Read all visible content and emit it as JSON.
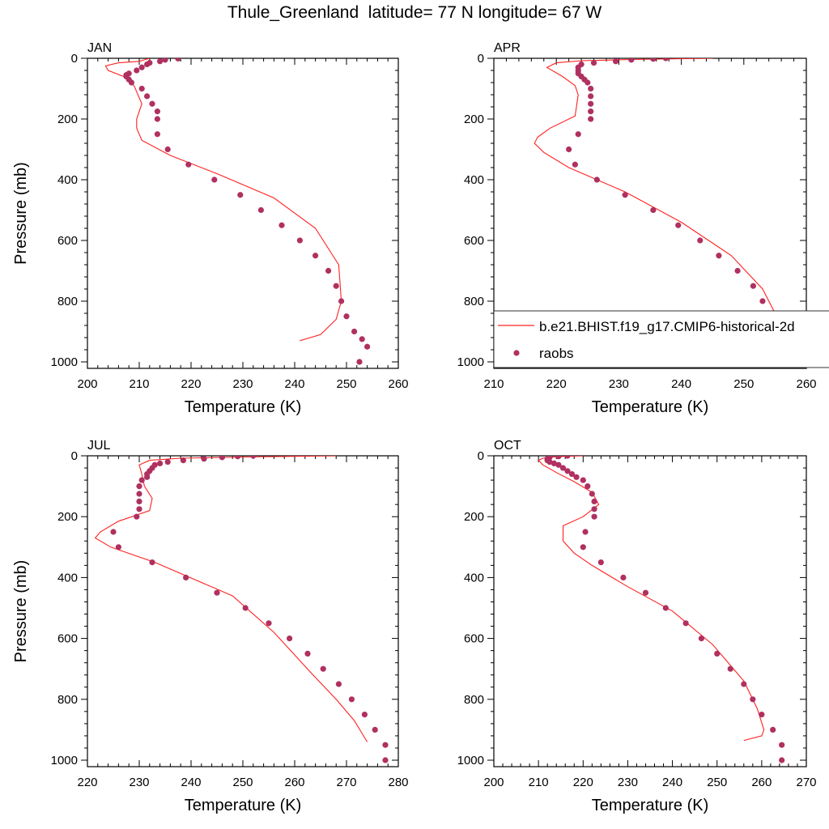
{
  "title": "Thule_Greenland  latitude= 77 N longitude= 67 W",
  "colors": {
    "model": "#ff2020",
    "obs": "#b03060"
  },
  "legend": {
    "model_label": "b.e21.BHIST.f19_g17.CMIP6-historical-2d",
    "obs_label": "raobs",
    "panel": 1
  },
  "chart_data": [
    {
      "type": "line",
      "panel_label": "JAN",
      "xlabel": "Temperature (K)",
      "ylabel": "Pressure (mb)",
      "xlim": [
        200,
        260
      ],
      "ylim": [
        1000,
        0
      ],
      "xticks": [
        200,
        210,
        220,
        230,
        240,
        250,
        260
      ],
      "yticks": [
        0,
        200,
        400,
        600,
        800,
        1000
      ],
      "series": [
        {
          "name": "b.e21.BHIST.f19_g17.CMIP6-historical-2d",
          "kind": "line",
          "x": [
            212,
            210,
            206,
            203.5,
            204,
            207,
            209,
            210.5,
            209.5,
            209.5,
            210.5,
            216,
            225,
            236,
            244,
            248.5,
            249,
            248,
            245,
            241
          ],
          "y": [
            0,
            10,
            15,
            25,
            40,
            60,
            90,
            150,
            200,
            230,
            270,
            320,
            380,
            460,
            560,
            680,
            800,
            860,
            910,
            930
          ]
        },
        {
          "name": "raobs",
          "kind": "scatter",
          "x": [
            217.5,
            215,
            214,
            212,
            211.5,
            210.5,
            209.5,
            208,
            207.5,
            207.5,
            208,
            208.5,
            210.5,
            211.5,
            212.5,
            213.5,
            213.5,
            213.5,
            215.5,
            219.5,
            224.5,
            229.5,
            233.5,
            237.5,
            241,
            244,
            246.5,
            248,
            249,
            250,
            251.5,
            253,
            254,
            252.5
          ],
          "y": [
            1,
            5,
            10,
            15,
            20,
            30,
            40,
            50,
            55,
            60,
            70,
            80,
            100,
            125,
            150,
            175,
            200,
            250,
            300,
            350,
            400,
            450,
            500,
            550,
            600,
            650,
            700,
            750,
            800,
            850,
            900,
            925,
            950,
            1000
          ]
        }
      ]
    },
    {
      "type": "line",
      "panel_label": "APR",
      "xlabel": "Temperature (K)",
      "ylabel": "",
      "xlim": [
        210,
        260
      ],
      "ylim": [
        1000,
        0
      ],
      "xticks": [
        210,
        220,
        230,
        240,
        250,
        260
      ],
      "yticks": [
        0,
        200,
        400,
        600,
        800,
        1000
      ],
      "series": [
        {
          "name": "b.e21.BHIST.f19_g17.CMIP6-historical-2d",
          "kind": "line",
          "x": [
            245,
            232,
            224,
            220,
            218.5,
            221,
            223,
            223.5,
            223,
            219,
            217,
            216.5,
            218,
            222,
            231,
            240,
            248,
            253,
            255,
            256,
            257,
            255
          ],
          "y": [
            0,
            4,
            8,
            15,
            30,
            60,
            90,
            120,
            190,
            230,
            260,
            280,
            310,
            360,
            440,
            540,
            650,
            760,
            840,
            900,
            940,
            950
          ]
        },
        {
          "name": "raobs",
          "kind": "scatter",
          "x": [
            237.5,
            235.5,
            232,
            229.5,
            226,
            224,
            223.5,
            223.5,
            223.5,
            224,
            224.5,
            225,
            225.5,
            225.5,
            225.5,
            225.5,
            225.5,
            223.5,
            222,
            223,
            226.5,
            231,
            235.5,
            239.5,
            243,
            246,
            249,
            251.5,
            253,
            254.5,
            256,
            257.5,
            257.5
          ],
          "y": [
            0,
            2,
            5,
            10,
            15,
            20,
            30,
            40,
            50,
            60,
            70,
            80,
            100,
            125,
            150,
            175,
            200,
            250,
            300,
            350,
            400,
            450,
            500,
            550,
            600,
            650,
            700,
            750,
            800,
            850,
            900,
            950,
            1000
          ]
        }
      ]
    },
    {
      "type": "line",
      "panel_label": "JUL",
      "xlabel": "Temperature (K)",
      "ylabel": "Pressure (mb)",
      "xlim": [
        220,
        280
      ],
      "ylim": [
        1000,
        0
      ],
      "xticks": [
        220,
        230,
        240,
        250,
        260,
        270,
        280
      ],
      "yticks": [
        0,
        200,
        400,
        600,
        800,
        1000
      ],
      "series": [
        {
          "name": "b.e21.BHIST.f19_g17.CMIP6-historical-2d",
          "kind": "line",
          "x": [
            268,
            250,
            238,
            232,
            230,
            230.5,
            231,
            232.5,
            232,
            226,
            222.5,
            221.5,
            224.5,
            233,
            248,
            256,
            263,
            268,
            271.5,
            274
          ],
          "y": [
            0,
            4,
            8,
            15,
            30,
            60,
            100,
            140,
            180,
            215,
            250,
            270,
            300,
            350,
            460,
            580,
            710,
            800,
            870,
            940
          ]
        },
        {
          "name": "raobs",
          "kind": "scatter",
          "x": [
            252,
            249,
            246,
            242.5,
            238.5,
            235.5,
            234,
            233,
            232.5,
            232,
            231.5,
            231.5,
            230.5,
            230,
            230,
            230,
            230,
            229.5,
            225,
            226,
            232.5,
            239,
            245,
            250.5,
            255,
            259,
            262.5,
            265.5,
            268.5,
            271,
            273.5,
            275.5,
            277.5,
            277.5
          ],
          "y": [
            0,
            2,
            5,
            10,
            15,
            20,
            25,
            30,
            40,
            50,
            60,
            70,
            80,
            100,
            125,
            150,
            175,
            200,
            250,
            300,
            350,
            400,
            450,
            500,
            550,
            600,
            650,
            700,
            750,
            800,
            850,
            900,
            950,
            1000
          ]
        }
      ]
    },
    {
      "type": "line",
      "panel_label": "OCT",
      "xlabel": "Temperature (K)",
      "ylabel": "",
      "xlim": [
        200,
        270
      ],
      "ylim": [
        1000,
        0
      ],
      "xticks": [
        200,
        210,
        220,
        230,
        240,
        250,
        260,
        270
      ],
      "yticks": [
        0,
        200,
        400,
        600,
        800,
        1000
      ],
      "series": [
        {
          "name": "b.e21.BHIST.f19_g17.CMIP6-historical-2d",
          "kind": "line",
          "x": [
            220,
            214,
            211,
            210,
            211,
            214,
            218,
            222,
            223.5,
            220,
            215.5,
            215.5,
            218,
            222,
            230,
            240,
            249,
            256,
            259,
            260.5,
            260,
            256
          ],
          "y": [
            0,
            3,
            8,
            15,
            30,
            55,
            85,
            120,
            160,
            200,
            230,
            280,
            320,
            360,
            430,
            510,
            620,
            740,
            830,
            900,
            920,
            935
          ]
        },
        {
          "name": "raobs",
          "kind": "scatter",
          "x": [
            216.5,
            214.5,
            212.5,
            212,
            212,
            212.5,
            213.5,
            214.5,
            215.5,
            216.5,
            217.5,
            218.5,
            220,
            221,
            222,
            222.5,
            222.5,
            222.5,
            220.5,
            220,
            224,
            229,
            234,
            238.5,
            243,
            246.5,
            250,
            253,
            256,
            258,
            260,
            262.5,
            264.5,
            264.5
          ],
          "y": [
            0,
            2,
            5,
            10,
            15,
            20,
            25,
            30,
            40,
            50,
            60,
            70,
            80,
            100,
            125,
            150,
            175,
            200,
            250,
            300,
            350,
            400,
            450,
            500,
            550,
            600,
            650,
            700,
            750,
            800,
            850,
            900,
            950,
            1000
          ]
        }
      ]
    }
  ]
}
